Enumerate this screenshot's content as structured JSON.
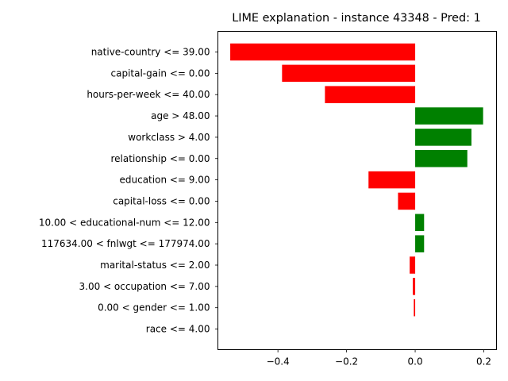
{
  "chart_data": {
    "type": "bar",
    "orientation": "horizontal",
    "title": "LIME explanation - instance 43348 - Pred: 1",
    "xlabel": "",
    "ylabel": "",
    "xlim": [
      -0.575,
      0.237
    ],
    "xticks": [
      -0.4,
      -0.2,
      0.0,
      0.2
    ],
    "xtick_labels": [
      "−0.4",
      "−0.2",
      "0.0",
      "0.2"
    ],
    "grid": false,
    "colors": {
      "positive": "#008000",
      "negative": "#ff0000"
    },
    "categories": [
      "native-country <= 39.00",
      "capital-gain <= 0.00",
      "hours-per-week <= 40.00",
      "age > 48.00",
      "workclass > 4.00",
      "relationship <= 0.00",
      "education <= 9.00",
      "capital-loss <= 0.00",
      "10.00 < educational-num <= 12.00",
      "117634.00 < fnlwgt <= 177974.00",
      "marital-status <= 2.00",
      "3.00 < occupation <= 7.00",
      "0.00 < gender <= 1.00",
      "race <= 4.00"
    ],
    "values": [
      -0.539,
      -0.388,
      -0.263,
      0.198,
      0.164,
      0.152,
      -0.136,
      -0.05,
      0.026,
      0.026,
      -0.016,
      -0.007,
      -0.004,
      0.0
    ]
  }
}
